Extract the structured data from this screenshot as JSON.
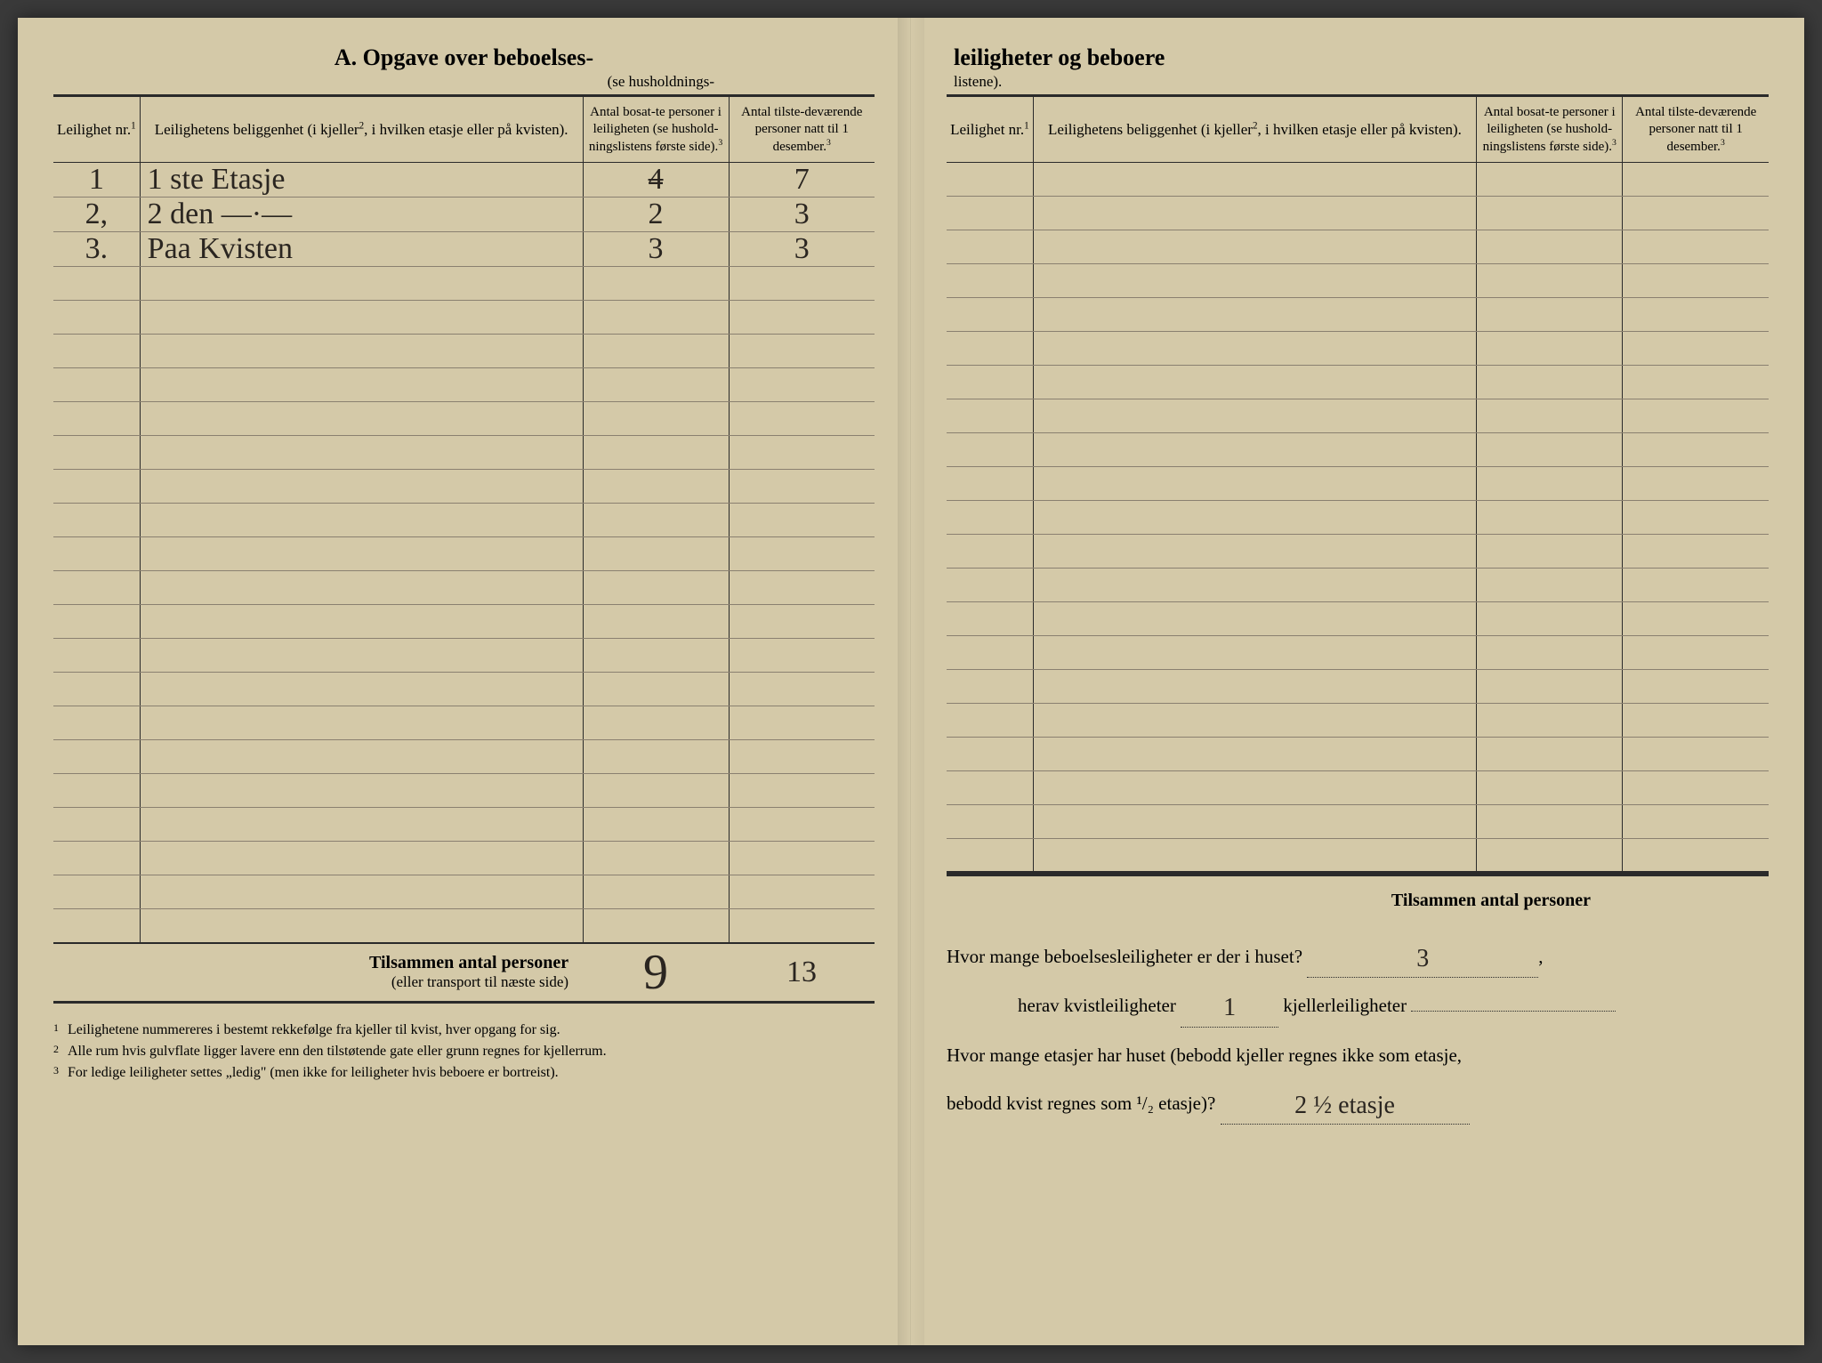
{
  "paper_color": "#d4c9a8",
  "ink_color": "#2a2a2a",
  "handwriting_color": "#2a2520",
  "left_page": {
    "heading": "A.  Opgave over beboelses-",
    "subheading": "(se husholdnings-",
    "headers": {
      "nr": "Leilighet nr.",
      "nr_sup": "1",
      "loc": "Leilighetens beliggenhet (i kjeller",
      "loc_sup": "2",
      "loc_tail": ", i hvilken etasje eller på kvisten).",
      "resid": "Antal bosat-te personer i leiligheten (se hushold-ningslistens første side).",
      "resid_sup": "3",
      "pres": "Antal tilste-deværende personer natt til 1 desember.",
      "pres_sup": "3"
    },
    "rows": [
      {
        "nr": "1",
        "loc": "1 ste   Etasje",
        "resid_strike": "4",
        "resid": "",
        "pres": "7"
      },
      {
        "nr": "2,",
        "loc": "2 den  —·—",
        "resid": "2",
        "pres": "3"
      },
      {
        "nr": "3.",
        "loc": "Paa  Kvisten",
        "resid": "3",
        "pres": "3"
      }
    ],
    "empty_rows": 20,
    "total": {
      "label": "Tilsammen antal personer",
      "sublabel": "(eller transport til næste side)",
      "resid": "9",
      "pres": "13"
    },
    "footnotes": [
      "Leilighetene nummereres i bestemt rekkefølge fra kjeller til kvist, hver opgang for sig.",
      "Alle rum hvis gulvflate ligger lavere enn den tilstøtende gate eller grunn regnes for kjellerrum.",
      "For ledige leiligheter settes „ledig\" (men ikke for leiligheter hvis beboere er bortreist)."
    ]
  },
  "right_page": {
    "heading": "leiligheter og beboere",
    "subheading": "listene).",
    "total_label": "Tilsammen antal personer",
    "empty_rows": 21,
    "questions": {
      "q1_pre": "Hvor mange beboelsesleiligheter er der i huset?",
      "q1_ans": "3",
      "q2_pre": "herav kvistleiligheter",
      "q2_ans": "1",
      "q2_mid": "kjellerleiligheter",
      "q3_pre": "Hvor mange etasjer har huset (bebodd kjeller regnes ikke som etasje,",
      "q3_line2": "bebodd kvist regnes som ¹/₂ etasje)?",
      "q3_ans": "2 ½ etasje"
    }
  }
}
